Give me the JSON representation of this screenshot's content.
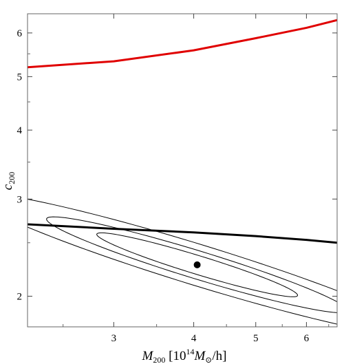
{
  "chart_data": {
    "type": "line",
    "x_scale": "log",
    "y_scale": "log",
    "xlim": [
      2.2,
      6.7
    ],
    "ylim": [
      1.76,
      6.5
    ],
    "grid": false,
    "xlabel": {
      "sym": "M",
      "sub": "200",
      "bracket_open": " [10",
      "exp": "14",
      "sym2": "M",
      "sub2": "⊙",
      "tail": "/h]"
    },
    "ylabel": {
      "sym": "c",
      "sub": "200"
    },
    "x_ticks": [
      {
        "value": 3,
        "label": "3"
      },
      {
        "value": 4,
        "label": "4"
      },
      {
        "value": 5,
        "label": "5"
      },
      {
        "value": 6,
        "label": "6"
      }
    ],
    "y_ticks": [
      {
        "value": 2,
        "label": "2"
      },
      {
        "value": 3,
        "label": "3"
      },
      {
        "value": 4,
        "label": "4"
      },
      {
        "value": 5,
        "label": "5"
      },
      {
        "value": 6,
        "label": "6"
      }
    ],
    "series": [
      {
        "color": "#e00000",
        "x": [
          2.2,
          3.0,
          4.0,
          5.0,
          6.0,
          6.7
        ],
        "y": [
          5.2,
          5.33,
          5.58,
          5.87,
          6.13,
          6.33
        ]
      },
      {
        "color": "#000000",
        "x": [
          2.2,
          3.0,
          4.0,
          5.0,
          6.0,
          6.7
        ],
        "y": [
          2.7,
          2.65,
          2.61,
          2.57,
          2.53,
          2.5
        ]
      }
    ],
    "point": {
      "x": 4.05,
      "y": 2.28,
      "color": "#000000"
    },
    "contours": [
      {
        "center": [
          4.05,
          2.28
        ],
        "a": [
          0.36,
          -0.13
        ],
        "b": [
          0.03,
          0.03
        ]
      },
      {
        "center": [
          4.05,
          2.28
        ],
        "a": [
          0.54,
          -0.195
        ],
        "b": [
          0.045,
          0.045
        ]
      },
      {
        "center": [
          4.05,
          2.28
        ],
        "a": [
          0.8,
          -0.29
        ],
        "b": [
          0.066,
          0.066
        ]
      }
    ]
  }
}
